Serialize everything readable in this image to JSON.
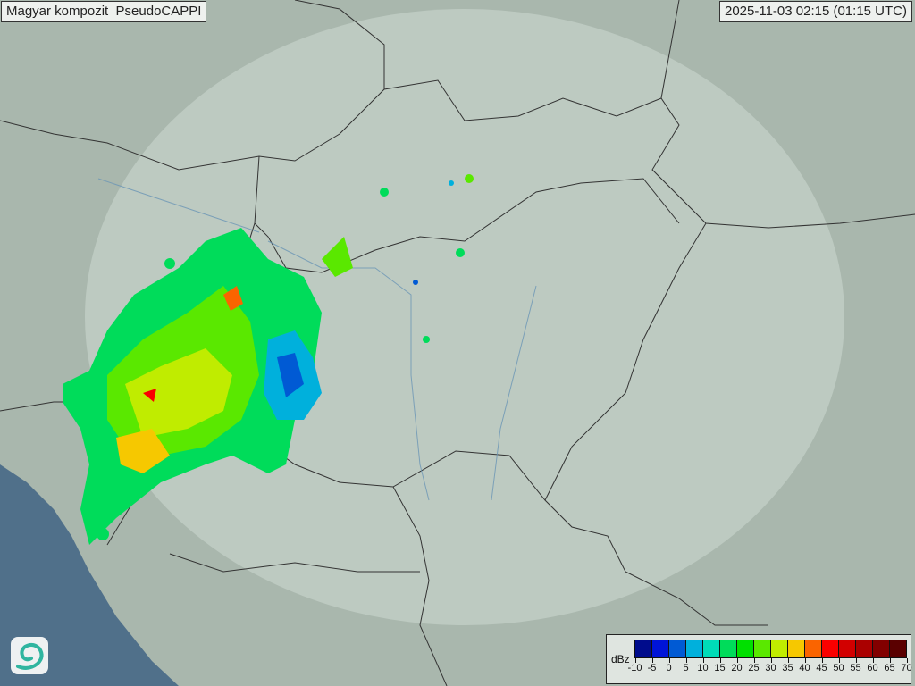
{
  "header": {
    "title": "Magyar kompozit  PseudoCAPPI",
    "timestamp": "2025-11-03 02:15 (01:15 UTC)"
  },
  "legend": {
    "unit": "dBz",
    "ticks": [
      "-10",
      "-5",
      "0",
      "5",
      "10",
      "15",
      "20",
      "25",
      "30",
      "35",
      "40",
      "45",
      "50",
      "55",
      "60",
      "65",
      "70"
    ],
    "colors": [
      "#000c8c",
      "#0014d8",
      "#005ad4",
      "#00b0dc",
      "#00dcb8",
      "#00dc5a",
      "#00e000",
      "#5ae800",
      "#c0ec00",
      "#f6c800",
      "#fa6400",
      "#fa0000",
      "#d20000",
      "#aa0000",
      "#820000",
      "#5a0000"
    ]
  },
  "map": {
    "background": "#a9b7ad",
    "coverage": "#c4d0c8",
    "sea": "#50708a"
  },
  "logo": {
    "icon": "met-service-swirl-logo"
  }
}
